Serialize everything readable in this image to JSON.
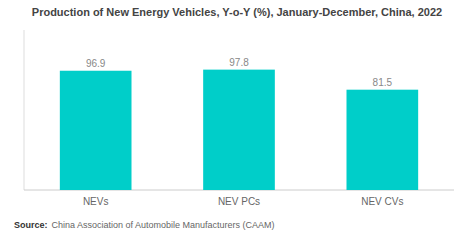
{
  "chart_data": {
    "type": "bar",
    "title": "Production of New Energy Vehicles, Y-o-Y (%), January-December, China, 2022",
    "categories": [
      "NEVs",
      "NEV PCs",
      "NEV CVs"
    ],
    "values": [
      96.9,
      97.8,
      81.5
    ],
    "color": "#00CEC9",
    "ylim": [
      0,
      130
    ],
    "grid": false,
    "data_labels": true,
    "tick_labels": "x",
    "source_label": "Source:",
    "source": "China Association of Automobile Manufacturers (CAAM)"
  }
}
